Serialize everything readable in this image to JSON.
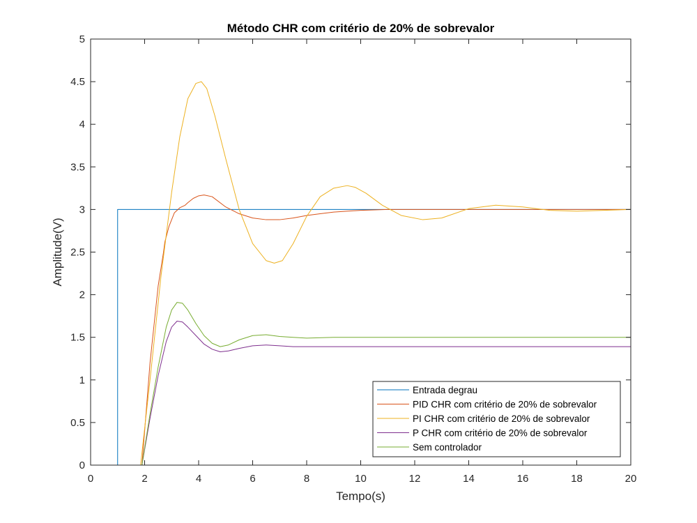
{
  "chart_data": {
    "type": "line",
    "title": "Método CHR com critério de 20% de sobrevalor",
    "xlabel": "Tempo(s)",
    "ylabel": "Amplitude(V)",
    "xlim": [
      0,
      20
    ],
    "ylim": [
      0,
      5
    ],
    "xticks": [
      0,
      2,
      4,
      6,
      8,
      10,
      12,
      14,
      16,
      18,
      20
    ],
    "yticks": [
      0,
      0.5,
      1,
      1.5,
      2,
      2.5,
      3,
      3.5,
      4,
      4.5,
      5
    ],
    "xtick_labels": [
      "0",
      "2",
      "4",
      "6",
      "8",
      "10",
      "12",
      "14",
      "16",
      "18",
      "20"
    ],
    "ytick_labels": [
      "0",
      "0.5",
      "1",
      "1.5",
      "2",
      "2.5",
      "3",
      "3.5",
      "4",
      "4.5",
      "5"
    ],
    "grid": false,
    "legend_position": "bottom-right",
    "series": [
      {
        "name": "Entrada degrau",
        "color": "#0072BD",
        "x": [
          0,
          1,
          1,
          20
        ],
        "y": [
          0,
          0,
          3,
          3
        ]
      },
      {
        "name": "PID CHR com critério de 20% de sobrevalor",
        "color": "#D95319",
        "x": [
          0,
          1.9,
          2.2,
          2.5,
          2.7,
          2.75,
          2.9,
          3.1,
          3.3,
          3.5,
          3.6,
          3.8,
          4.0,
          4.2,
          4.5,
          5.0,
          5.5,
          6.0,
          6.5,
          7.0,
          7.5,
          8.0,
          8.5,
          9.0,
          10.0,
          11.0,
          12.0,
          14.0,
          16.0,
          18.0,
          20.0
        ],
        "y": [
          0,
          0,
          1.2,
          2.1,
          2.5,
          2.62,
          2.8,
          2.96,
          3.02,
          3.05,
          3.08,
          3.13,
          3.16,
          3.17,
          3.15,
          3.03,
          2.95,
          2.9,
          2.88,
          2.88,
          2.9,
          2.93,
          2.95,
          2.97,
          2.99,
          3.0,
          3.0,
          3.0,
          3.0,
          3.0,
          3.0
        ]
      },
      {
        "name": "PI CHR com critério de 20% de sobrevalor",
        "color": "#EDB120",
        "x": [
          0,
          1.85,
          2.2,
          2.6,
          3.0,
          3.3,
          3.6,
          3.9,
          4.1,
          4.3,
          4.6,
          5.0,
          5.5,
          6.0,
          6.5,
          6.8,
          7.1,
          7.5,
          8.0,
          8.5,
          9.0,
          9.5,
          9.8,
          10.2,
          10.8,
          11.5,
          12.3,
          13.0,
          14.0,
          15.0,
          16.0,
          17.0,
          18.0,
          19.0,
          20.0
        ],
        "y": [
          0,
          0,
          1.0,
          2.2,
          3.2,
          3.85,
          4.3,
          4.48,
          4.5,
          4.42,
          4.1,
          3.6,
          3.0,
          2.6,
          2.4,
          2.37,
          2.4,
          2.6,
          2.92,
          3.15,
          3.25,
          3.28,
          3.26,
          3.19,
          3.05,
          2.93,
          2.88,
          2.9,
          3.01,
          3.05,
          3.03,
          2.99,
          2.98,
          2.99,
          3.0
        ]
      },
      {
        "name": "P CHR com critério de 20% de sobrevalor",
        "color": "#7E2F8E",
        "x": [
          0,
          1.9,
          2.2,
          2.5,
          2.8,
          3.0,
          3.2,
          3.4,
          3.6,
          3.9,
          4.2,
          4.5,
          4.8,
          5.1,
          5.5,
          6.0,
          6.5,
          7.0,
          7.5,
          8.0,
          9.0,
          10.0,
          12.0,
          14.0,
          16.0,
          18.0,
          20.0
        ],
        "y": [
          0,
          0,
          0.55,
          1.05,
          1.45,
          1.62,
          1.69,
          1.68,
          1.62,
          1.52,
          1.42,
          1.36,
          1.33,
          1.34,
          1.37,
          1.4,
          1.41,
          1.4,
          1.39,
          1.39,
          1.39,
          1.39,
          1.39,
          1.39,
          1.39,
          1.39,
          1.39
        ]
      },
      {
        "name": "Sem controlador",
        "color": "#77AC30",
        "x": [
          0,
          1.9,
          2.2,
          2.5,
          2.8,
          3.0,
          3.2,
          3.4,
          3.6,
          3.9,
          4.2,
          4.5,
          4.8,
          5.1,
          5.5,
          6.0,
          6.5,
          7.0,
          7.5,
          8.0,
          9.0,
          10.0,
          12.0,
          14.0,
          16.0,
          18.0,
          20.0
        ],
        "y": [
          0,
          0,
          0.6,
          1.15,
          1.62,
          1.82,
          1.91,
          1.9,
          1.82,
          1.66,
          1.52,
          1.43,
          1.39,
          1.41,
          1.47,
          1.52,
          1.53,
          1.51,
          1.5,
          1.49,
          1.5,
          1.5,
          1.5,
          1.5,
          1.5,
          1.5,
          1.5
        ]
      }
    ]
  }
}
